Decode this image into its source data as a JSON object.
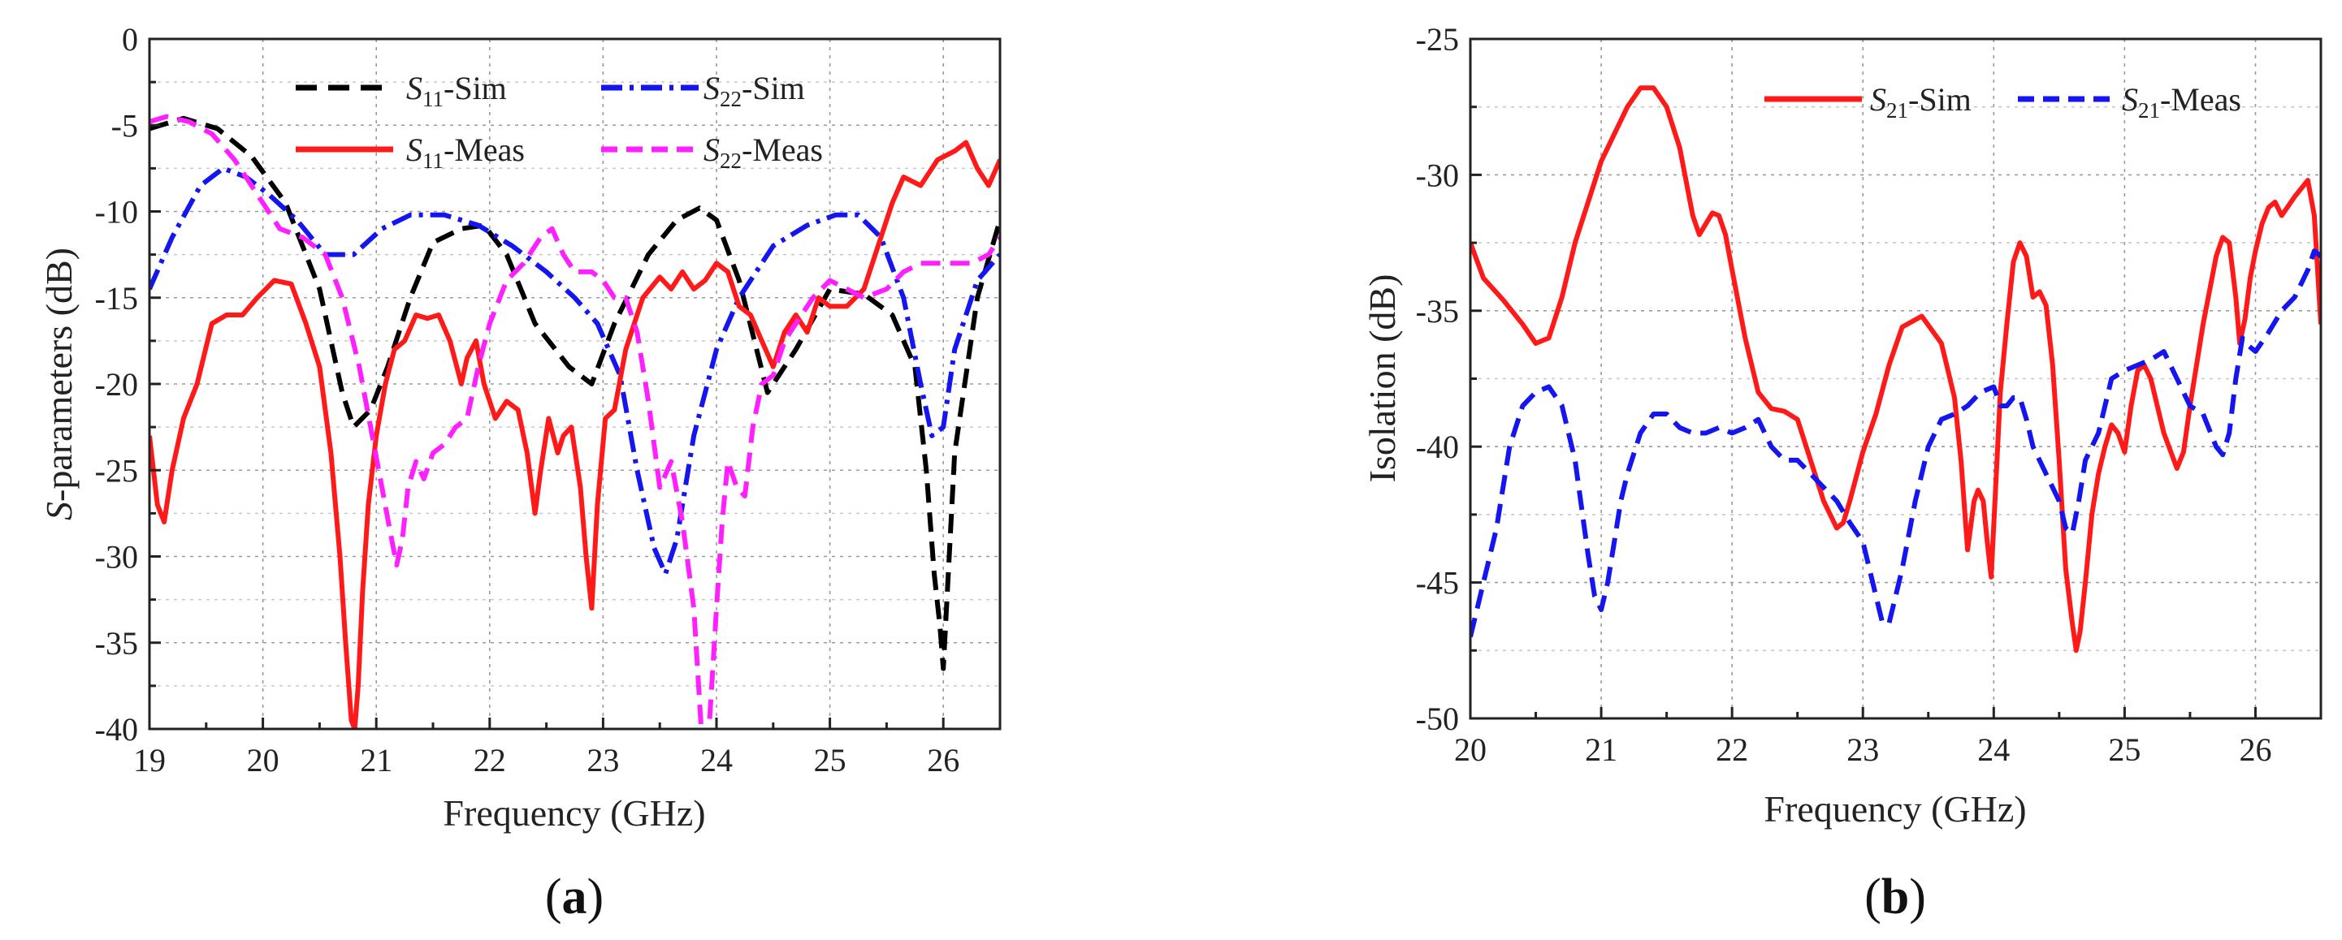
{
  "chart_data": [
    {
      "type": "line",
      "panel_label": "a",
      "xlabel": "Frequency (GHz)",
      "ylabel": "S-parameters (dB)",
      "ylabel_italic_prefix": "S",
      "ylabel_rest": "-parameters (dB)",
      "xlim": [
        19,
        26.5
      ],
      "ylim": [
        -40,
        0
      ],
      "xticks": [
        19,
        20,
        21,
        22,
        23,
        24,
        25,
        26
      ],
      "yticks": [
        0,
        -5,
        -10,
        -15,
        -20,
        -25,
        -30,
        -35,
        -40
      ],
      "grid": true,
      "legend_position": "top",
      "series": [
        {
          "name": "S11-Sim",
          "sym": "S",
          "sub": "11",
          "suffix": "-Sim",
          "color": "#000000",
          "dash": "dash",
          "x": [
            19.0,
            19.3,
            19.6,
            19.9,
            20.2,
            20.5,
            20.7,
            20.8,
            20.95,
            21.1,
            21.3,
            21.5,
            21.75,
            21.95,
            22.15,
            22.4,
            22.7,
            22.9,
            23.1,
            23.4,
            23.65,
            23.85,
            24.0,
            24.2,
            24.45,
            24.7,
            25.0,
            25.3,
            25.55,
            25.75,
            25.85,
            25.92,
            25.97,
            26.0,
            26.1,
            26.3,
            26.5
          ],
          "y": [
            -5.2,
            -4.6,
            -5.2,
            -6.8,
            -9.5,
            -14.5,
            -20.5,
            -22.5,
            -21.5,
            -19.0,
            -15.0,
            -11.8,
            -11.0,
            -10.8,
            -12.5,
            -16.5,
            -19.0,
            -20.0,
            -16.5,
            -12.5,
            -10.5,
            -9.8,
            -10.5,
            -14.0,
            -20.5,
            -18.0,
            -14.5,
            -14.8,
            -16.0,
            -19.0,
            -25.0,
            -31.0,
            -34.0,
            -36.5,
            -24.0,
            -15.0,
            -10.5
          ]
        },
        {
          "name": "S22-Sim",
          "sym": "S",
          "sub": "22",
          "suffix": "-Sim",
          "color": "#1515f0",
          "dash": "dashdot",
          "x": [
            19.0,
            19.2,
            19.45,
            19.65,
            19.85,
            20.05,
            20.3,
            20.55,
            20.8,
            21.05,
            21.3,
            21.6,
            21.9,
            22.2,
            22.5,
            22.75,
            22.95,
            23.15,
            23.3,
            23.45,
            23.55,
            23.65,
            23.8,
            24.0,
            24.2,
            24.5,
            24.8,
            25.05,
            25.25,
            25.45,
            25.65,
            25.8,
            25.9,
            26.0,
            26.1,
            26.3,
            26.5
          ],
          "y": [
            -14.5,
            -11.5,
            -8.5,
            -7.5,
            -8.0,
            -9.0,
            -10.5,
            -12.5,
            -12.5,
            -11.0,
            -10.2,
            -10.2,
            -10.8,
            -12.0,
            -13.5,
            -15.0,
            -16.5,
            -19.5,
            -25.0,
            -29.5,
            -31.0,
            -29.0,
            -23.0,
            -18.0,
            -15.0,
            -12.0,
            -10.8,
            -10.2,
            -10.2,
            -11.5,
            -15.0,
            -20.0,
            -23.0,
            -22.5,
            -18.0,
            -14.0,
            -12.5
          ]
        },
        {
          "name": "S11-Meas",
          "sym": "S",
          "sub": "11",
          "suffix": "-Meas",
          "color": "#ff1a1a",
          "dash": "solid",
          "x": [
            19.0,
            19.07,
            19.13,
            19.2,
            19.3,
            19.42,
            19.55,
            19.68,
            19.82,
            19.95,
            20.1,
            20.25,
            20.38,
            20.5,
            20.6,
            20.68,
            20.73,
            20.78,
            20.81,
            20.84,
            20.88,
            20.93,
            21.0,
            21.08,
            21.16,
            21.25,
            21.35,
            21.45,
            21.55,
            21.65,
            21.75,
            21.8,
            21.88,
            21.95,
            22.05,
            22.15,
            22.25,
            22.33,
            22.4,
            22.45,
            22.52,
            22.6,
            22.65,
            22.72,
            22.8,
            22.85,
            22.9,
            22.95,
            23.02,
            23.1,
            23.2,
            23.35,
            23.5,
            23.6,
            23.7,
            23.8,
            23.9,
            24.0,
            24.1,
            24.2,
            24.3,
            24.4,
            24.5,
            24.6,
            24.7,
            24.8,
            24.9,
            25.0,
            25.15,
            25.3,
            25.45,
            25.55,
            25.65,
            25.8,
            25.95,
            26.1,
            26.2,
            26.3,
            26.4,
            26.5
          ],
          "y": [
            -23.0,
            -27.0,
            -28.0,
            -25.0,
            -22.0,
            -20.0,
            -16.5,
            -16.0,
            -16.0,
            -15.0,
            -14.0,
            -14.2,
            -16.5,
            -19.0,
            -24.0,
            -30.0,
            -35.0,
            -39.5,
            -40.0,
            -37.5,
            -32.0,
            -27.0,
            -23.0,
            -20.0,
            -18.0,
            -17.5,
            -16.0,
            -16.2,
            -16.0,
            -17.5,
            -20.0,
            -18.5,
            -17.5,
            -20.0,
            -22.0,
            -21.0,
            -21.5,
            -24.0,
            -27.5,
            -25.0,
            -22.0,
            -24.0,
            -23.0,
            -22.5,
            -26.0,
            -30.0,
            -33.0,
            -27.0,
            -22.0,
            -21.5,
            -18.0,
            -15.0,
            -13.8,
            -14.5,
            -13.5,
            -14.5,
            -14.0,
            -13.0,
            -13.5,
            -15.5,
            -16.0,
            -17.5,
            -19.0,
            -17.0,
            -16.0,
            -17.0,
            -15.0,
            -15.5,
            -15.5,
            -14.5,
            -11.5,
            -9.5,
            -8.0,
            -8.5,
            -7.0,
            -6.5,
            -6.0,
            -7.5,
            -8.5,
            -7.0
          ]
        },
        {
          "name": "S22-Meas",
          "sym": "S",
          "sub": "22",
          "suffix": "-Meas",
          "color": "#ff20ff",
          "dash": "dash",
          "x": [
            19.0,
            19.15,
            19.35,
            19.55,
            19.75,
            19.95,
            20.15,
            20.35,
            20.55,
            20.7,
            20.85,
            20.95,
            21.05,
            21.12,
            21.18,
            21.23,
            21.28,
            21.35,
            21.42,
            21.5,
            21.6,
            21.7,
            21.8,
            21.9,
            22.0,
            22.15,
            22.3,
            22.45,
            22.55,
            22.65,
            22.75,
            22.9,
            23.0,
            23.1,
            23.2,
            23.3,
            23.4,
            23.5,
            23.6,
            23.7,
            23.8,
            23.87,
            23.93,
            24.0,
            24.05,
            24.1,
            24.18,
            24.25,
            24.32,
            24.4,
            24.5,
            24.6,
            24.7,
            24.85,
            25.0,
            25.15,
            25.3,
            25.5,
            25.65,
            25.8,
            25.95,
            26.1,
            26.25,
            26.4,
            26.5
          ],
          "y": [
            -4.8,
            -4.5,
            -4.8,
            -5.5,
            -7.0,
            -9.0,
            -11.0,
            -11.5,
            -12.5,
            -15.0,
            -19.0,
            -22.5,
            -26.0,
            -28.5,
            -30.5,
            -29.0,
            -26.0,
            -24.5,
            -25.5,
            -24.0,
            -23.5,
            -22.5,
            -22.0,
            -19.0,
            -16.5,
            -14.0,
            -13.0,
            -11.5,
            -11.0,
            -12.5,
            -13.5,
            -13.5,
            -14.0,
            -15.0,
            -15.0,
            -17.0,
            -21.0,
            -26.0,
            -24.5,
            -28.0,
            -33.0,
            -40.5,
            -40.5,
            -33.0,
            -28.0,
            -24.5,
            -26.0,
            -26.5,
            -22.5,
            -20.0,
            -19.5,
            -17.5,
            -16.5,
            -15.0,
            -14.0,
            -14.5,
            -15.0,
            -14.5,
            -13.5,
            -13.0,
            -13.0,
            -13.0,
            -13.0,
            -12.5,
            -11.5
          ]
        }
      ]
    },
    {
      "type": "line",
      "panel_label": "b",
      "xlabel": "Frequency (GHz)",
      "ylabel": "Isolation (dB)",
      "xlim": [
        20,
        26.5
      ],
      "ylim": [
        -50,
        -25
      ],
      "xticks": [
        20,
        21,
        22,
        23,
        24,
        25,
        26
      ],
      "yticks": [
        -25,
        -30,
        -35,
        -40,
        -45,
        -50
      ],
      "grid": true,
      "legend_position": "top-right",
      "series": [
        {
          "name": "S21-Sim",
          "sym": "S",
          "sub": "21",
          "suffix": "-Sim",
          "color": "#ff1a1a",
          "dash": "solid",
          "x": [
            20.0,
            20.1,
            20.25,
            20.4,
            20.5,
            20.6,
            20.7,
            20.8,
            20.9,
            21.0,
            21.1,
            21.2,
            21.3,
            21.4,
            21.5,
            21.6,
            21.7,
            21.75,
            21.8,
            21.85,
            21.9,
            21.95,
            22.0,
            22.1,
            22.2,
            22.3,
            22.4,
            22.5,
            22.6,
            22.7,
            22.8,
            22.85,
            22.9,
            23.0,
            23.1,
            23.2,
            23.3,
            23.45,
            23.6,
            23.7,
            23.75,
            23.8,
            23.85,
            23.88,
            23.92,
            23.95,
            23.98,
            24.02,
            24.05,
            24.1,
            24.15,
            24.2,
            24.25,
            24.3,
            24.35,
            24.4,
            24.45,
            24.5,
            24.55,
            24.6,
            24.63,
            24.66,
            24.7,
            24.75,
            24.8,
            24.85,
            24.9,
            24.95,
            25.0,
            25.05,
            25.1,
            25.15,
            25.2,
            25.3,
            25.4,
            25.45,
            25.5,
            25.6,
            25.7,
            25.75,
            25.8,
            25.85,
            25.88,
            25.92,
            25.96,
            26.0,
            26.05,
            26.1,
            26.15,
            26.2,
            26.3,
            26.4,
            26.45,
            26.5
          ],
          "y": [
            -32.5,
            -33.8,
            -34.6,
            -35.5,
            -36.2,
            -36.0,
            -34.5,
            -32.5,
            -31.0,
            -29.5,
            -28.5,
            -27.5,
            -26.8,
            -26.8,
            -27.5,
            -29.0,
            -31.5,
            -32.2,
            -31.8,
            -31.4,
            -31.5,
            -32.2,
            -33.5,
            -36.0,
            -38.0,
            -38.6,
            -38.7,
            -39.0,
            -40.5,
            -42.0,
            -43.0,
            -42.8,
            -42.0,
            -40.2,
            -38.8,
            -37.0,
            -35.6,
            -35.2,
            -36.2,
            -38.2,
            -40.5,
            -43.8,
            -42.0,
            -41.6,
            -42.0,
            -43.5,
            -44.8,
            -41.0,
            -38.0,
            -35.5,
            -33.2,
            -32.5,
            -33.0,
            -34.5,
            -34.3,
            -34.8,
            -37.0,
            -40.5,
            -44.5,
            -46.5,
            -47.5,
            -46.8,
            -45.0,
            -42.5,
            -41.0,
            -40.0,
            -39.2,
            -39.5,
            -40.2,
            -38.5,
            -37.2,
            -37.0,
            -37.5,
            -39.5,
            -40.8,
            -40.2,
            -38.5,
            -35.5,
            -33.0,
            -32.3,
            -32.5,
            -34.5,
            -36.2,
            -35.3,
            -33.8,
            -32.8,
            -31.8,
            -31.2,
            -31.0,
            -31.5,
            -30.8,
            -30.2,
            -31.5,
            -35.5
          ]
        },
        {
          "name": "S21-Meas",
          "sym": "S",
          "sub": "21",
          "suffix": "-Meas",
          "color": "#1515f0",
          "dash": "dash",
          "x": [
            20.0,
            20.05,
            20.1,
            20.15,
            20.2,
            20.3,
            20.4,
            20.5,
            20.6,
            20.7,
            20.8,
            20.9,
            20.95,
            21.0,
            21.05,
            21.1,
            21.15,
            21.2,
            21.3,
            21.4,
            21.5,
            21.6,
            21.7,
            21.8,
            21.9,
            22.0,
            22.1,
            22.2,
            22.3,
            22.4,
            22.5,
            22.6,
            22.7,
            22.8,
            22.9,
            23.0,
            23.05,
            23.1,
            23.15,
            23.2,
            23.3,
            23.4,
            23.5,
            23.6,
            23.7,
            23.8,
            23.9,
            24.0,
            24.05,
            24.1,
            24.15,
            24.2,
            24.25,
            24.3,
            24.4,
            24.5,
            24.55,
            24.6,
            24.65,
            24.7,
            24.8,
            24.9,
            25.0,
            25.1,
            25.2,
            25.3,
            25.4,
            25.5,
            25.6,
            25.7,
            25.75,
            25.8,
            25.85,
            25.9,
            25.95,
            26.0,
            26.1,
            26.2,
            26.3,
            26.4,
            26.45,
            26.5
          ],
          "y": [
            -47.0,
            -46.0,
            -45.0,
            -44.0,
            -43.0,
            -40.0,
            -38.5,
            -38.0,
            -37.8,
            -38.5,
            -40.5,
            -44.0,
            -45.5,
            -46.0,
            -45.0,
            -43.5,
            -42.0,
            -41.0,
            -39.5,
            -38.8,
            -38.8,
            -39.3,
            -39.5,
            -39.5,
            -39.3,
            -39.5,
            -39.3,
            -39.0,
            -40.0,
            -40.5,
            -40.5,
            -41.0,
            -41.5,
            -42.0,
            -42.8,
            -43.5,
            -44.5,
            -45.5,
            -46.5,
            -46.5,
            -44.5,
            -42.0,
            -40.0,
            -39.0,
            -38.8,
            -38.5,
            -38.0,
            -37.8,
            -38.5,
            -38.5,
            -38.2,
            -38.2,
            -39.0,
            -40.0,
            -41.0,
            -42.0,
            -43.0,
            -43.2,
            -42.0,
            -40.5,
            -39.5,
            -37.5,
            -37.2,
            -37.0,
            -36.8,
            -36.5,
            -37.5,
            -38.5,
            -38.8,
            -40.0,
            -40.3,
            -39.5,
            -37.5,
            -36.0,
            -36.3,
            -36.5,
            -35.8,
            -35.0,
            -34.5,
            -33.5,
            -32.8,
            -33.0
          ]
        }
      ]
    }
  ]
}
